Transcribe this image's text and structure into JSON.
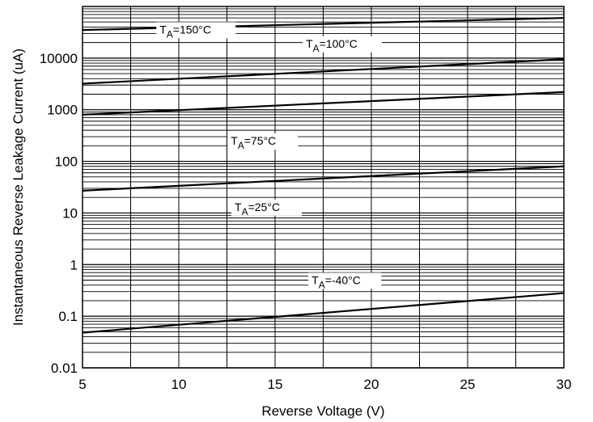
{
  "chart_data": {
    "type": "line",
    "title": "",
    "xlabel": "Reverse Voltage (V)",
    "ylabel": "Instantaneous Reverse Leakage Current (uA)",
    "xlim": [
      5,
      30
    ],
    "ylim": [
      0.01,
      100000
    ],
    "yscale": "log",
    "grid": true,
    "x_ticks": [
      5,
      10,
      15,
      20,
      25,
      30
    ],
    "y_ticks": [
      0.01,
      0.1,
      1,
      10,
      100,
      1000,
      10000
    ],
    "x_tick_labels": [
      "5",
      "10",
      "15",
      "20",
      "25",
      "30"
    ],
    "y_tick_labels": [
      "0.01",
      "0.1",
      "1",
      "10",
      "100",
      "1000",
      "10000"
    ],
    "series": [
      {
        "name": "TA=150°C",
        "label_main": "T",
        "label_sub": "A",
        "label_rest": "=150°C",
        "x": [
          5,
          30
        ],
        "y": [
          35000,
          60000
        ]
      },
      {
        "name": "TA=100°C",
        "label_main": "T",
        "label_sub": "A",
        "label_rest": "=100°C",
        "x": [
          5,
          30
        ],
        "y": [
          3200,
          9500
        ]
      },
      {
        "name": "TA=75°C",
        "label_main": "T",
        "label_sub": "A",
        "label_rest": "=75°C",
        "x": [
          5,
          30
        ],
        "y": [
          800,
          2200
        ]
      },
      {
        "name": "TA=25°C",
        "label_main": "T",
        "label_sub": "A",
        "label_rest": "=25°C",
        "x": [
          5,
          30
        ],
        "y": [
          27,
          80
        ]
      },
      {
        "name": "TA=-40°C",
        "label_main": "T",
        "label_sub": "A",
        "label_rest": "=-40°C",
        "x": [
          5,
          30
        ],
        "y": [
          0.048,
          0.28
        ]
      }
    ]
  }
}
